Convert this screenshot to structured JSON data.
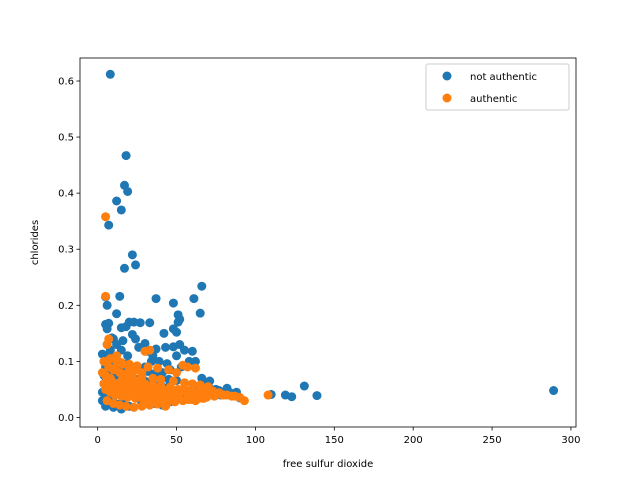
{
  "chart_data": {
    "type": "scatter",
    "xlabel": "free sulfur dioxide",
    "ylabel": "chlorides",
    "xlim": [
      -11.2,
      303.2
    ],
    "ylim": [
      -0.017,
      0.641
    ],
    "xticks": [
      0,
      50,
      100,
      150,
      200,
      250,
      300
    ],
    "yticks": [
      0.0,
      0.1,
      0.2,
      0.3,
      0.4,
      0.5,
      0.6
    ],
    "xtick_labels": [
      "0",
      "50",
      "100",
      "150",
      "200",
      "250",
      "300"
    ],
    "ytick_labels": [
      "0.0",
      "0.1",
      "0.2",
      "0.3",
      "0.4",
      "0.5",
      "0.6"
    ],
    "grid": false,
    "legend_position": "top-right",
    "series": [
      {
        "name": "not authentic",
        "color": "#1f77b4",
        "points": [
          [
            8,
            0.612
          ],
          [
            18,
            0.467
          ],
          [
            17,
            0.414
          ],
          [
            19,
            0.403
          ],
          [
            12,
            0.386
          ],
          [
            15,
            0.37
          ],
          [
            7,
            0.343
          ],
          [
            22,
            0.29
          ],
          [
            24,
            0.272
          ],
          [
            17,
            0.266
          ],
          [
            66,
            0.234
          ],
          [
            5,
            0.215
          ],
          [
            14,
            0.216
          ],
          [
            37,
            0.212
          ],
          [
            61,
            0.212
          ],
          [
            48,
            0.204
          ],
          [
            6,
            0.2
          ],
          [
            12,
            0.185
          ],
          [
            51,
            0.183
          ],
          [
            65,
            0.186
          ],
          [
            52,
            0.175
          ],
          [
            51,
            0.17
          ],
          [
            20,
            0.17
          ],
          [
            23,
            0.17
          ],
          [
            27,
            0.169
          ],
          [
            33,
            0.169
          ],
          [
            5,
            0.166
          ],
          [
            7,
            0.168
          ],
          [
            15,
            0.16
          ],
          [
            18,
            0.162
          ],
          [
            6,
            0.158
          ],
          [
            48,
            0.158
          ],
          [
            50,
            0.152
          ],
          [
            42,
            0.15
          ],
          [
            22,
            0.148
          ],
          [
            24,
            0.14
          ],
          [
            9,
            0.142
          ],
          [
            16,
            0.137
          ],
          [
            30,
            0.132
          ],
          [
            52,
            0.13
          ],
          [
            48,
            0.126
          ],
          [
            43,
            0.125
          ],
          [
            37,
            0.122
          ],
          [
            55,
            0.12
          ],
          [
            60,
            0.118
          ],
          [
            3,
            0.113
          ],
          [
            50,
            0.11
          ],
          [
            10,
            0.105
          ],
          [
            66,
            0.07
          ],
          [
            70,
            0.06
          ],
          [
            75,
            0.05
          ],
          [
            82,
            0.052
          ],
          [
            88,
            0.045
          ],
          [
            110,
            0.041
          ],
          [
            119,
            0.04
          ],
          [
            123,
            0.037
          ],
          [
            131,
            0.056
          ],
          [
            139,
            0.039
          ],
          [
            289,
            0.048
          ],
          [
            5,
            0.09
          ],
          [
            8,
            0.08
          ],
          [
            12,
            0.075
          ],
          [
            20,
            0.072
          ],
          [
            25,
            0.068
          ],
          [
            30,
            0.065
          ],
          [
            35,
            0.06
          ],
          [
            40,
            0.058
          ],
          [
            45,
            0.055
          ],
          [
            55,
            0.05
          ],
          [
            60,
            0.048
          ],
          [
            65,
            0.045
          ],
          [
            72,
            0.042
          ],
          [
            3,
            0.03
          ],
          [
            5,
            0.02
          ],
          [
            10,
            0.018
          ],
          [
            15,
            0.015
          ],
          [
            20,
            0.02
          ],
          [
            28,
            0.025
          ],
          [
            38,
            0.03
          ],
          [
            48,
            0.032
          ],
          [
            58,
            0.035
          ],
          [
            68,
            0.038
          ],
          [
            78,
            0.04
          ],
          [
            90,
            0.035
          ],
          [
            4,
            0.06
          ],
          [
            6,
            0.05
          ],
          [
            9,
            0.04
          ],
          [
            13,
            0.1
          ],
          [
            18,
            0.095
          ],
          [
            22,
            0.088
          ],
          [
            27,
            0.085
          ],
          [
            32,
            0.082
          ],
          [
            36,
            0.078
          ],
          [
            41,
            0.08
          ],
          [
            46,
            0.085
          ],
          [
            53,
            0.09
          ],
          [
            58,
            0.1
          ],
          [
            62,
            0.1
          ],
          [
            26,
            0.125
          ],
          [
            31,
            0.118
          ],
          [
            35,
            0.11
          ],
          [
            39,
            0.1
          ],
          [
            44,
            0.096
          ],
          [
            4,
            0.1
          ],
          [
            7,
            0.11
          ],
          [
            11,
            0.098
          ],
          [
            16,
            0.085
          ],
          [
            21,
            0.08
          ],
          [
            24,
            0.06
          ],
          [
            29,
            0.055
          ],
          [
            33,
            0.05
          ],
          [
            37,
            0.045
          ],
          [
            42,
            0.04
          ],
          [
            47,
            0.038
          ],
          [
            52,
            0.036
          ],
          [
            57,
            0.034
          ],
          [
            62,
            0.032
          ],
          [
            67,
            0.036
          ],
          [
            72,
            0.05
          ],
          [
            77,
            0.048
          ],
          [
            84,
            0.044
          ],
          [
            4,
            0.075
          ],
          [
            8,
            0.065
          ],
          [
            14,
            0.055
          ],
          [
            19,
            0.05
          ],
          [
            23,
            0.045
          ],
          [
            3,
            0.045
          ],
          [
            5,
            0.035
          ],
          [
            7,
            0.028
          ],
          [
            11,
            0.025
          ],
          [
            16,
            0.03
          ],
          [
            26,
            0.035
          ],
          [
            31,
            0.03
          ],
          [
            36,
            0.025
          ],
          [
            41,
            0.022
          ],
          [
            46,
            0.028
          ],
          [
            51,
            0.04
          ],
          [
            56,
            0.045
          ],
          [
            61,
            0.055
          ],
          [
            66,
            0.06
          ],
          [
            71,
            0.065
          ],
          [
            40,
            0.07
          ],
          [
            45,
            0.068
          ],
          [
            50,
            0.066
          ],
          [
            30,
            0.09
          ],
          [
            34,
            0.1
          ],
          [
            19,
            0.11
          ],
          [
            15,
            0.12
          ],
          [
            12,
            0.13
          ],
          [
            10,
            0.14
          ],
          [
            8,
            0.12
          ],
          [
            6,
            0.13
          ]
        ]
      },
      {
        "name": "authentic",
        "color": "#ff7f0e",
        "points": [
          [
            5,
            0.358
          ],
          [
            5,
            0.216
          ],
          [
            7,
            0.14
          ],
          [
            6,
            0.13
          ],
          [
            33,
            0.12
          ],
          [
            30,
            0.118
          ],
          [
            12,
            0.11
          ],
          [
            8,
            0.105
          ],
          [
            4,
            0.1
          ],
          [
            15,
            0.098
          ],
          [
            20,
            0.095
          ],
          [
            25,
            0.092
          ],
          [
            32,
            0.09
          ],
          [
            38,
            0.088
          ],
          [
            54,
            0.093
          ],
          [
            57,
            0.09
          ],
          [
            62,
            0.088
          ],
          [
            45,
            0.085
          ],
          [
            50,
            0.08
          ],
          [
            10,
            0.085
          ],
          [
            14,
            0.08
          ],
          [
            18,
            0.078
          ],
          [
            22,
            0.075
          ],
          [
            28,
            0.072
          ],
          [
            35,
            0.07
          ],
          [
            40,
            0.068
          ],
          [
            48,
            0.065
          ],
          [
            55,
            0.062
          ],
          [
            60,
            0.06
          ],
          [
            65,
            0.058
          ],
          [
            70,
            0.055
          ],
          [
            6,
            0.07
          ],
          [
            9,
            0.065
          ],
          [
            13,
            0.06
          ],
          [
            17,
            0.058
          ],
          [
            21,
            0.055
          ],
          [
            26,
            0.052
          ],
          [
            31,
            0.05
          ],
          [
            36,
            0.048
          ],
          [
            42,
            0.046
          ],
          [
            47,
            0.045
          ],
          [
            52,
            0.044
          ],
          [
            57,
            0.043
          ],
          [
            63,
            0.042
          ],
          [
            68,
            0.045
          ],
          [
            73,
            0.047
          ],
          [
            77,
            0.044
          ],
          [
            82,
            0.04
          ],
          [
            87,
            0.038
          ],
          [
            93,
            0.03
          ],
          [
            108,
            0.04
          ],
          [
            5,
            0.05
          ],
          [
            8,
            0.045
          ],
          [
            11,
            0.04
          ],
          [
            15,
            0.038
          ],
          [
            19,
            0.036
          ],
          [
            24,
            0.034
          ],
          [
            29,
            0.032
          ],
          [
            34,
            0.03
          ],
          [
            39,
            0.028
          ],
          [
            44,
            0.026
          ],
          [
            49,
            0.028
          ],
          [
            54,
            0.03
          ],
          [
            59,
            0.032
          ],
          [
            64,
            0.034
          ],
          [
            69,
            0.036
          ],
          [
            74,
            0.038
          ],
          [
            79,
            0.04
          ],
          [
            6,
            0.03
          ],
          [
            10,
            0.025
          ],
          [
            14,
            0.022
          ],
          [
            18,
            0.02
          ],
          [
            23,
            0.018
          ],
          [
            28,
            0.02
          ],
          [
            33,
            0.022
          ],
          [
            38,
            0.024
          ],
          [
            43,
            0.02
          ],
          [
            7,
            0.09
          ],
          [
            11,
            0.088
          ],
          [
            16,
            0.07
          ],
          [
            20,
            0.068
          ],
          [
            25,
            0.064
          ],
          [
            30,
            0.06
          ],
          [
            35,
            0.058
          ],
          [
            40,
            0.056
          ],
          [
            46,
            0.054
          ],
          [
            51,
            0.05
          ],
          [
            56,
            0.048
          ],
          [
            61,
            0.046
          ],
          [
            66,
            0.044
          ],
          [
            4,
            0.06
          ],
          [
            9,
            0.055
          ],
          [
            13,
            0.052
          ],
          [
            17,
            0.048
          ],
          [
            22,
            0.046
          ],
          [
            27,
            0.044
          ],
          [
            32,
            0.042
          ],
          [
            37,
            0.04
          ],
          [
            42,
            0.038
          ],
          [
            47,
            0.036
          ],
          [
            52,
            0.034
          ],
          [
            57,
            0.032
          ],
          [
            62,
            0.03
          ],
          [
            67,
            0.034
          ],
          [
            72,
            0.04
          ],
          [
            12,
            0.1
          ],
          [
            16,
            0.095
          ],
          [
            20,
            0.09
          ],
          [
            24,
            0.085
          ],
          [
            28,
            0.08
          ],
          [
            19,
            0.072
          ],
          [
            23,
            0.066
          ],
          [
            26,
            0.062
          ],
          [
            31,
            0.056
          ],
          [
            36,
            0.052
          ],
          [
            41,
            0.05
          ],
          [
            3,
            0.08
          ],
          [
            5,
            0.075
          ],
          [
            8,
            0.07
          ],
          [
            15,
            0.065
          ],
          [
            30,
            0.035
          ],
          [
            35,
            0.038
          ],
          [
            45,
            0.042
          ],
          [
            50,
            0.048
          ],
          [
            55,
            0.052
          ],
          [
            60,
            0.05
          ],
          [
            65,
            0.048
          ],
          [
            70,
            0.046
          ],
          [
            75,
            0.042
          ],
          [
            80,
            0.04
          ],
          [
            85,
            0.038
          ],
          [
            90,
            0.036
          ]
        ]
      }
    ]
  }
}
